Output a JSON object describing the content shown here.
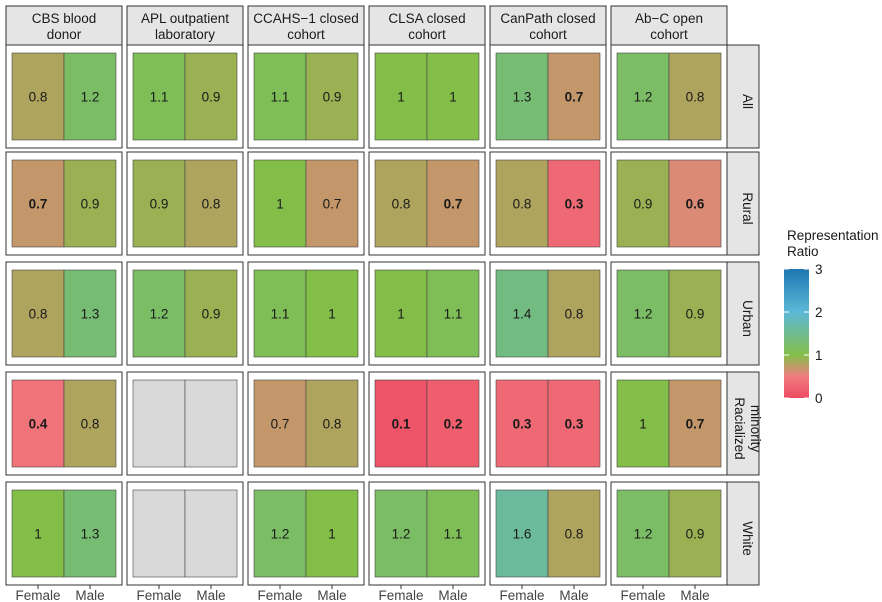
{
  "chart_data": {
    "type": "heatmap",
    "title": "",
    "xlabel": "",
    "ylabel": "",
    "columns": [
      {
        "line1": "CBS blood",
        "line2": "donor"
      },
      {
        "line1": "APL outpatient",
        "line2": "laboratory"
      },
      {
        "line1": "CCAHS−1 closed",
        "line2": "cohort"
      },
      {
        "line1": "CLSA closed",
        "line2": "cohort"
      },
      {
        "line1": "CanPath closed",
        "line2": "cohort"
      },
      {
        "line1": "Ab−C open",
        "line2": "cohort"
      }
    ],
    "rows": [
      {
        "line1": "All",
        "line2": ""
      },
      {
        "line1": "Rural",
        "line2": ""
      },
      {
        "line1": "Urban",
        "line2": ""
      },
      {
        "line1": "Racialized",
        "line2": "minority"
      },
      {
        "line1": "White",
        "line2": ""
      }
    ],
    "categories": [
      "Female",
      "Male"
    ],
    "values": [
      [
        [
          0.8,
          1.2
        ],
        [
          1.1,
          0.9
        ],
        [
          1.1,
          0.9
        ],
        [
          1,
          1
        ],
        [
          1.3,
          0.7
        ],
        [
          1.2,
          0.8
        ]
      ],
      [
        [
          0.7,
          0.9
        ],
        [
          0.9,
          0.8
        ],
        [
          1,
          0.7
        ],
        [
          0.8,
          0.7
        ],
        [
          0.8,
          0.3
        ],
        [
          0.9,
          0.6
        ]
      ],
      [
        [
          0.8,
          1.3
        ],
        [
          1.2,
          0.9
        ],
        [
          1.1,
          1
        ],
        [
          1,
          1.1
        ],
        [
          1.4,
          0.8
        ],
        [
          1.2,
          0.9
        ]
      ],
      [
        [
          0.4,
          0.8
        ],
        [
          null,
          null
        ],
        [
          0.7,
          0.8
        ],
        [
          0.1,
          0.2
        ],
        [
          0.3,
          0.3
        ],
        [
          1,
          0.7
        ]
      ],
      [
        [
          1,
          1.3
        ],
        [
          null,
          null
        ],
        [
          1.2,
          1
        ],
        [
          1.2,
          1.1
        ],
        [
          1.6,
          0.8
        ],
        [
          1.2,
          0.9
        ]
      ]
    ],
    "bold": [
      [
        [
          false,
          false
        ],
        [
          false,
          false
        ],
        [
          false,
          false
        ],
        [
          false,
          false
        ],
        [
          false,
          true
        ],
        [
          false,
          false
        ]
      ],
      [
        [
          true,
          false
        ],
        [
          false,
          false
        ],
        [
          false,
          false
        ],
        [
          false,
          true
        ],
        [
          false,
          true
        ],
        [
          false,
          true
        ]
      ],
      [
        [
          false,
          false
        ],
        [
          false,
          false
        ],
        [
          false,
          false
        ],
        [
          false,
          false
        ],
        [
          false,
          false
        ],
        [
          false,
          false
        ]
      ],
      [
        [
          true,
          false
        ],
        [
          false,
          false
        ],
        [
          false,
          false
        ],
        [
          true,
          true
        ],
        [
          true,
          true
        ],
        [
          false,
          true
        ]
      ],
      [
        [
          false,
          false
        ],
        [
          false,
          false
        ],
        [
          false,
          false
        ],
        [
          false,
          false
        ],
        [
          false,
          false
        ],
        [
          false,
          false
        ]
      ]
    ],
    "legend": {
      "title_line1": "Representation",
      "title_line2": "Ratio",
      "range": [
        0,
        3
      ],
      "ticks": [
        0,
        1,
        2,
        3
      ],
      "colors": {
        "low": "#ee4a61",
        "lowmid": "#f07d80",
        "mid": "#83be48",
        "highmid": "#5cb8d6",
        "high": "#1f76b3"
      },
      "placement": "right"
    },
    "missing_color": "#d9d9d9",
    "strip_color": "#e5e5e5"
  }
}
